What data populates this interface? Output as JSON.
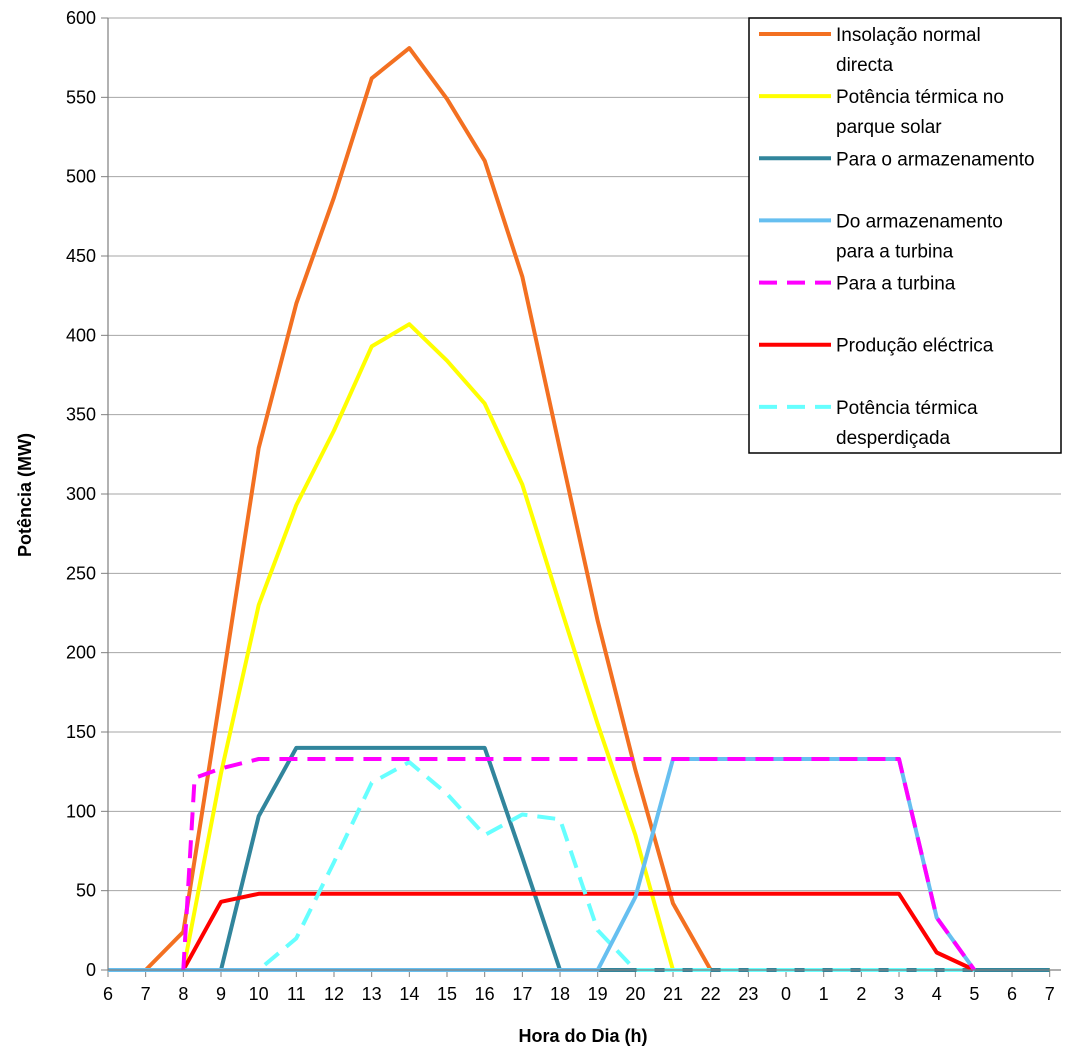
{
  "chart_data": {
    "type": "line",
    "title": "",
    "xlabel": "Hora do Dia (h)",
    "ylabel": "Potência (MW)",
    "ylim": [
      0,
      600
    ],
    "yticks": [
      0,
      50,
      100,
      150,
      200,
      250,
      300,
      350,
      400,
      450,
      500,
      550,
      600
    ],
    "categories": [
      "6",
      "7",
      "8",
      "9",
      "10",
      "11",
      "12",
      "13",
      "14",
      "15",
      "16",
      "17",
      "18",
      "19",
      "20",
      "21",
      "22",
      "23",
      "0",
      "1",
      "2",
      "3",
      "4",
      "5",
      "6",
      "7"
    ],
    "grid": "horizontal",
    "legend_position": "top-right",
    "series": [
      {
        "name": "Insolação normal directa",
        "color": "#F37021",
        "dash": "solid",
        "points": [
          [
            0,
            0
          ],
          [
            1,
            0
          ],
          [
            2,
            24
          ],
          [
            3,
            175
          ],
          [
            4,
            329
          ],
          [
            5,
            420
          ],
          [
            6,
            487
          ],
          [
            7,
            562
          ],
          [
            8,
            581
          ],
          [
            9,
            549
          ],
          [
            10,
            510
          ],
          [
            11,
            437
          ],
          [
            12,
            328
          ],
          [
            13,
            220
          ],
          [
            14,
            126
          ],
          [
            15,
            42
          ],
          [
            16,
            0
          ],
          [
            17,
            0
          ],
          [
            18,
            0
          ],
          [
            19,
            0
          ],
          [
            20,
            0
          ],
          [
            21,
            0
          ],
          [
            22,
            0
          ],
          [
            23,
            0
          ],
          [
            24,
            0
          ],
          [
            25,
            0
          ]
        ]
      },
      {
        "name": "Potência térmica no parque solar",
        "color": "#FFFF00",
        "dash": "solid",
        "points": [
          [
            0,
            0
          ],
          [
            1,
            0
          ],
          [
            2,
            0
          ],
          [
            3,
            124
          ],
          [
            4,
            230
          ],
          [
            5,
            293
          ],
          [
            6,
            340
          ],
          [
            7,
            393
          ],
          [
            8,
            407
          ],
          [
            9,
            384
          ],
          [
            10,
            357
          ],
          [
            11,
            306
          ],
          [
            12,
            230
          ],
          [
            13,
            155
          ],
          [
            14,
            85
          ],
          [
            15,
            0
          ],
          [
            16,
            0
          ],
          [
            17,
            0
          ],
          [
            18,
            0
          ],
          [
            19,
            0
          ],
          [
            20,
            0
          ],
          [
            21,
            0
          ],
          [
            22,
            0
          ],
          [
            23,
            0
          ],
          [
            24,
            0
          ],
          [
            25,
            0
          ]
        ]
      },
      {
        "name": "Para o armazenamento",
        "color": "#31859C",
        "dash": "solid",
        "points": [
          [
            0,
            0
          ],
          [
            1,
            0
          ],
          [
            2,
            0
          ],
          [
            3,
            0
          ],
          [
            4,
            97
          ],
          [
            5,
            140
          ],
          [
            6,
            140
          ],
          [
            7,
            140
          ],
          [
            8,
            140
          ],
          [
            9,
            140
          ],
          [
            10,
            140
          ],
          [
            11,
            71
          ],
          [
            12,
            0
          ],
          [
            13,
            0
          ],
          [
            14,
            0
          ],
          [
            15,
            0
          ],
          [
            16,
            0
          ],
          [
            17,
            0
          ],
          [
            18,
            0
          ],
          [
            19,
            0
          ],
          [
            20,
            0
          ],
          [
            21,
            0
          ],
          [
            22,
            0
          ],
          [
            23,
            0
          ],
          [
            24,
            0
          ],
          [
            25,
            0
          ]
        ]
      },
      {
        "name": "Do armazenamento para a turbina",
        "color": "#66BFF0",
        "dash": "solid",
        "points": [
          [
            0,
            0
          ],
          [
            1,
            0
          ],
          [
            2,
            0
          ],
          [
            3,
            0
          ],
          [
            4,
            0
          ],
          [
            5,
            0
          ],
          [
            6,
            0
          ],
          [
            7,
            0
          ],
          [
            8,
            0
          ],
          [
            9,
            0
          ],
          [
            10,
            0
          ],
          [
            11,
            0
          ],
          [
            12,
            0
          ],
          [
            13,
            0
          ],
          [
            14,
            46
          ],
          [
            15,
            133
          ],
          [
            16,
            133
          ],
          [
            17,
            133
          ],
          [
            18,
            133
          ],
          [
            19,
            133
          ],
          [
            20,
            133
          ],
          [
            21,
            133
          ],
          [
            22,
            33
          ],
          [
            23,
            0
          ]
        ]
      },
      {
        "name": "Para a turbina",
        "color": "#FF00FF",
        "dash": "dashed",
        "points": [
          [
            2,
            0
          ],
          [
            2.3,
            121
          ],
          [
            3,
            127
          ],
          [
            4,
            133
          ],
          [
            5,
            133
          ],
          [
            6,
            133
          ],
          [
            7,
            133
          ],
          [
            8,
            133
          ],
          [
            9,
            133
          ],
          [
            10,
            133
          ],
          [
            11,
            133
          ],
          [
            12,
            133
          ],
          [
            13,
            133
          ],
          [
            14,
            133
          ],
          [
            15,
            133
          ],
          [
            16,
            133
          ],
          [
            17,
            133
          ],
          [
            18,
            133
          ],
          [
            19,
            133
          ],
          [
            20,
            133
          ],
          [
            21,
            133
          ],
          [
            22,
            33
          ],
          [
            23,
            0
          ]
        ]
      },
      {
        "name": "Produção eléctrica",
        "color": "#FF0000",
        "dash": "solid",
        "points": [
          [
            0,
            0
          ],
          [
            1,
            0
          ],
          [
            2,
            0
          ],
          [
            3,
            43
          ],
          [
            4,
            48
          ],
          [
            5,
            48
          ],
          [
            6,
            48
          ],
          [
            7,
            48
          ],
          [
            8,
            48
          ],
          [
            9,
            48
          ],
          [
            10,
            48
          ],
          [
            11,
            48
          ],
          [
            12,
            48
          ],
          [
            13,
            48
          ],
          [
            14,
            48
          ],
          [
            15,
            48
          ],
          [
            16,
            48
          ],
          [
            17,
            48
          ],
          [
            18,
            48
          ],
          [
            19,
            48
          ],
          [
            20,
            48
          ],
          [
            21,
            48
          ],
          [
            22,
            11
          ],
          [
            23,
            0
          ]
        ]
      },
      {
        "name": "Potência térmica desperdiçada",
        "color": "#66FFFF",
        "dash": "dashed",
        "points": [
          [
            0.5,
            0
          ],
          [
            1,
            0
          ],
          [
            2,
            0
          ],
          [
            3,
            0
          ],
          [
            4,
            0
          ],
          [
            5,
            20
          ],
          [
            6,
            68
          ],
          [
            7,
            118
          ],
          [
            8,
            131
          ],
          [
            9,
            111
          ],
          [
            10,
            85
          ],
          [
            11,
            98
          ],
          [
            12,
            95
          ],
          [
            13,
            25
          ],
          [
            14,
            0
          ],
          [
            15,
            0
          ],
          [
            16,
            0
          ],
          [
            17,
            0
          ],
          [
            18,
            0
          ],
          [
            19,
            0
          ],
          [
            20,
            0
          ],
          [
            21,
            0
          ],
          [
            22,
            0
          ],
          [
            23,
            0
          ]
        ]
      }
    ]
  }
}
